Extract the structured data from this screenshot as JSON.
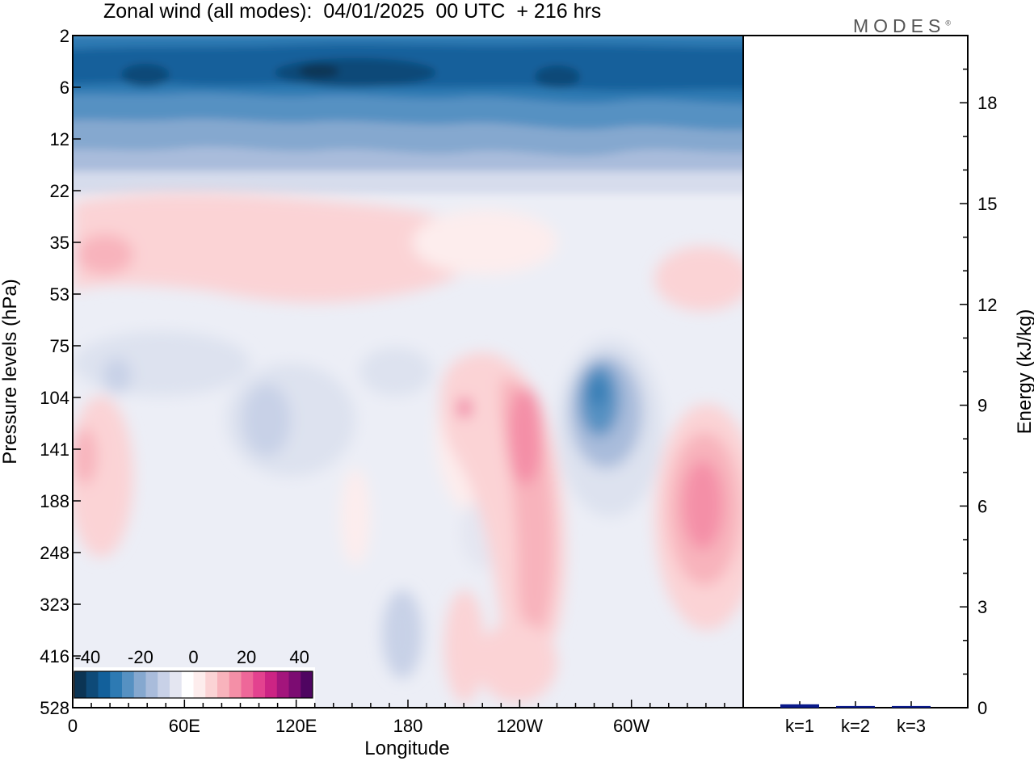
{
  "title": "Zonal wind (all modes):  04/01/2025  00 UTC  + 216 hrs",
  "logo_text": "MODES",
  "logo_mark": "®",
  "chart_data": [
    {
      "type": "heatmap",
      "title": "Zonal wind (all modes):  04/01/2025  00 UTC  + 216 hrs",
      "xlabel": "Longitude",
      "ylabel": "Pressure levels (hPa)",
      "x_ticks": [
        "0",
        "60E",
        "120E",
        "180",
        "120W",
        "60W"
      ],
      "x_tick_values": [
        0,
        60,
        120,
        180,
        240,
        300
      ],
      "xlim": [
        0,
        360
      ],
      "y_ticks": [
        "2",
        "6",
        "12",
        "22",
        "35",
        "53",
        "75",
        "104",
        "141",
        "188",
        "248",
        "323",
        "416",
        "528"
      ],
      "y_scale": "log",
      "colorbar": {
        "tick_labels": [
          "-40",
          "-20",
          "0",
          "20",
          "40"
        ],
        "tick_values": [
          -40,
          -20,
          0,
          20,
          40
        ],
        "range": [
          -45,
          45
        ],
        "colors": [
          "#0b3454",
          "#0e4a78",
          "#12609b",
          "#2d7ab3",
          "#5691c2",
          "#85a8cf",
          "#a9bcdb",
          "#c8d1e7",
          "#e4e6f1",
          "#ffffff",
          "#fdeded",
          "#fbd3d5",
          "#f8b3bc",
          "#f48fa7",
          "#ee6799",
          "#e3428f",
          "#cc2484",
          "#a3157c",
          "#7c0c72",
          "#4f0561"
        ]
      },
      "features": [
        {
          "description_level": "2-12",
          "lon_range": [
            0,
            360
          ],
          "u": -30
        },
        {
          "description_level": "6",
          "lon_range": [
            100,
            200
          ],
          "u": -45
        },
        {
          "description_level": "22-53",
          "lon_range": [
            0,
            200
          ],
          "u": 10
        },
        {
          "description_level": "104-248",
          "lon_range": [
            240,
            265
          ],
          "u": 25
        },
        {
          "description_level": "104-188",
          "lon_range": [
            275,
            295
          ],
          "u": -30
        },
        {
          "description_level": "141-248",
          "lon_range": [
            330,
            360
          ],
          "u": 25
        },
        {
          "description_level": "248-416",
          "lon_range": [
            165,
            185
          ],
          "u": -12
        }
      ]
    },
    {
      "type": "bar",
      "ylabel": "Energy (kJ/kg)",
      "categories": [
        "k=1",
        "k=2",
        "k=3"
      ],
      "values": [
        0.1,
        0.05,
        0.05
      ],
      "ylim": [
        0,
        20
      ],
      "y_ticks": [
        0,
        3,
        6,
        9,
        12,
        15,
        18
      ],
      "bar_color": "#0a1a8c"
    }
  ]
}
